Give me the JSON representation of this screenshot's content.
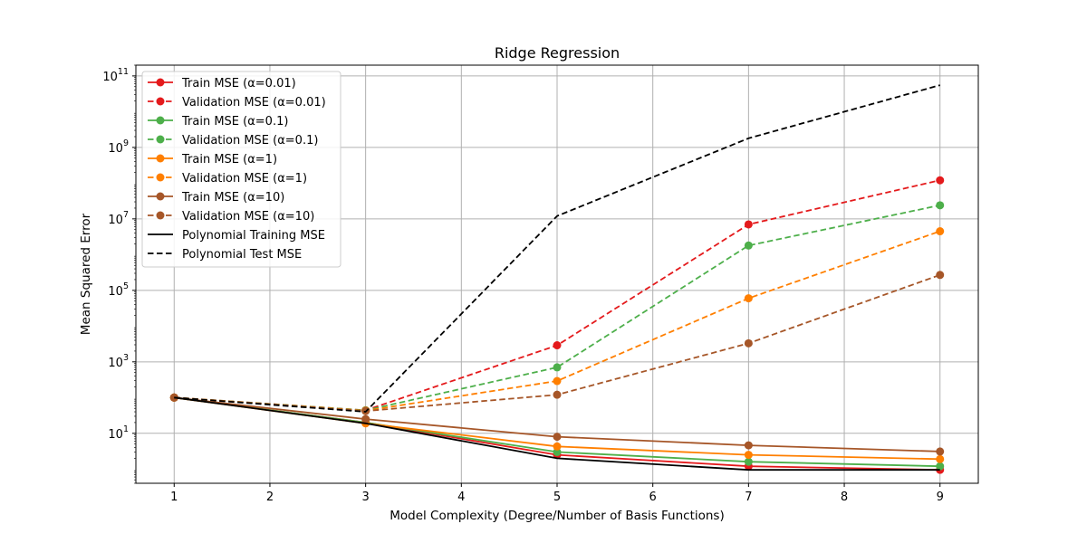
{
  "chart_data": {
    "type": "line",
    "title": "Ridge Regression",
    "xlabel": "Model Complexity (Degree/Number of Basis Functions)",
    "ylabel": "Mean Squared Error",
    "xlim": [
      0.6,
      9.4
    ],
    "ylim": [
      0.4,
      200000000000
    ],
    "yscale": "log",
    "xticks": [
      "1",
      "2",
      "3",
      "4",
      "5",
      "6",
      "7",
      "8",
      "9"
    ],
    "yticks": [
      {
        "value": 10,
        "base": "10",
        "exp": "1"
      },
      {
        "value": 1000,
        "base": "10",
        "exp": "3"
      },
      {
        "value": 100000,
        "base": "10",
        "exp": "5"
      },
      {
        "value": 10000000,
        "base": "10",
        "exp": "7"
      },
      {
        "value": 1000000000,
        "base": "10",
        "exp": "9"
      },
      {
        "value": 100000000000,
        "base": "10",
        "exp": "11"
      }
    ],
    "grid": true,
    "legend_position": "top-left",
    "x": [
      1,
      3,
      5,
      7,
      9
    ],
    "series": [
      {
        "name": "Train MSE (α=0.01)",
        "color": "#e41a1c",
        "dash": "solid",
        "marker": true,
        "values": [
          100,
          20,
          2.5,
          1.2,
          0.95
        ]
      },
      {
        "name": "Validation MSE (α=0.01)",
        "color": "#e41a1c",
        "dash": "dashed",
        "marker": true,
        "values": [
          100,
          44,
          2900,
          7000000,
          120000000
        ]
      },
      {
        "name": "Train MSE (α=0.1)",
        "color": "#4daf4a",
        "dash": "solid",
        "marker": true,
        "values": [
          100,
          20,
          3,
          1.6,
          1.2
        ]
      },
      {
        "name": "Validation MSE (α=0.1)",
        "color": "#4daf4a",
        "dash": "dashed",
        "marker": true,
        "values": [
          100,
          44,
          700,
          1800000,
          24000000
        ]
      },
      {
        "name": "Train MSE (α=1)",
        "color": "#ff7f00",
        "dash": "solid",
        "marker": true,
        "values": [
          100,
          19,
          4.3,
          2.5,
          1.9
        ]
      },
      {
        "name": "Validation MSE (α=1)",
        "color": "#ff7f00",
        "dash": "dashed",
        "marker": true,
        "values": [
          100,
          43,
          290,
          60000,
          4500000
        ]
      },
      {
        "name": "Train MSE (α=10)",
        "color": "#a65628",
        "dash": "solid",
        "marker": true,
        "values": [
          100,
          25,
          8,
          4.6,
          3.1
        ]
      },
      {
        "name": "Validation MSE (α=10)",
        "color": "#a65628",
        "dash": "dashed",
        "marker": true,
        "values": [
          100,
          42,
          120,
          3300,
          270000
        ]
      },
      {
        "name": "Polynomial Training MSE",
        "color": "#000000",
        "dash": "solid",
        "marker": false,
        "values": [
          100,
          19,
          2.0,
          0.95,
          0.95
        ]
      },
      {
        "name": "Polynomial Test MSE",
        "color": "#000000",
        "dash": "dashed",
        "marker": false,
        "values": [
          100,
          40,
          12000000,
          1800000000,
          55000000000
        ]
      }
    ]
  }
}
